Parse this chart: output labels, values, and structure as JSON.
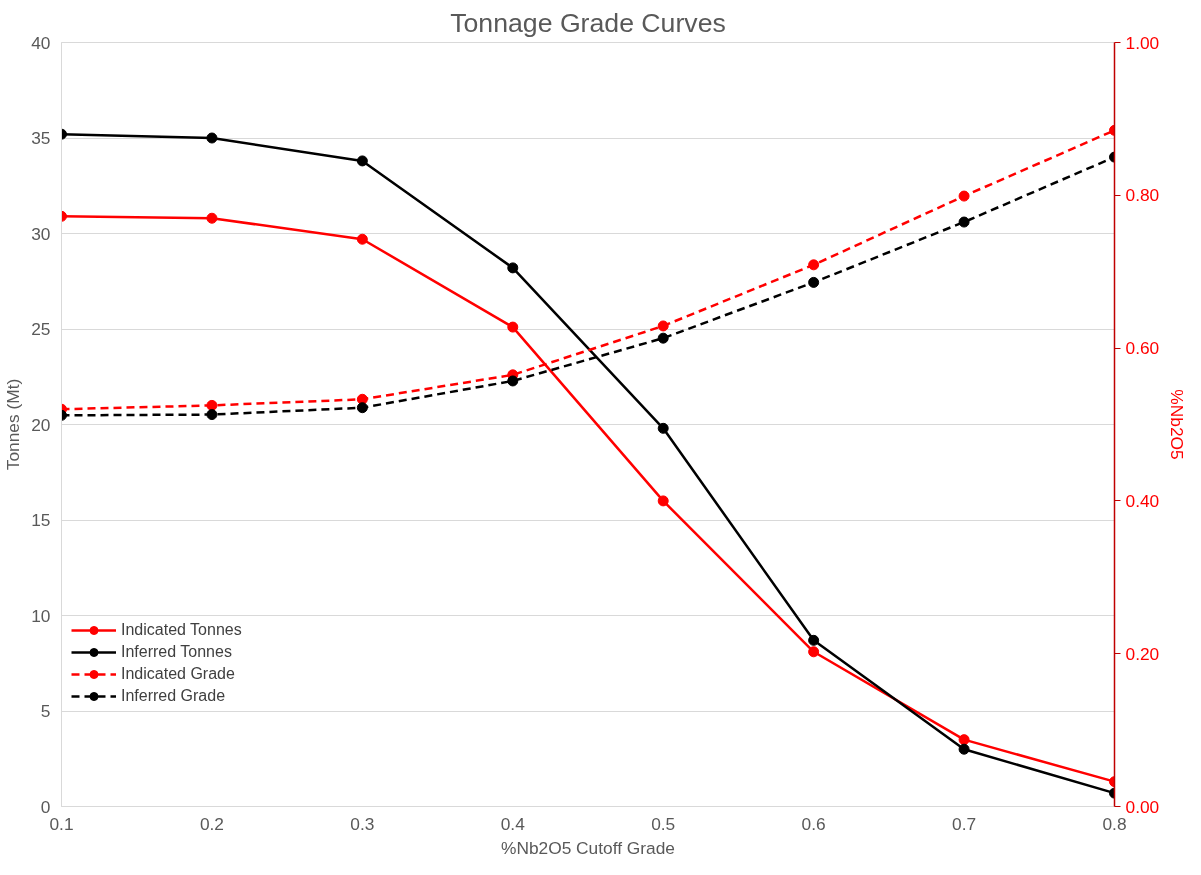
{
  "chart_data": {
    "type": "line",
    "title": "Tonnage Grade Curves",
    "xlabel": "%Nb2O5 Cutoff Grade",
    "ylabel": "Tonnes (Mt)",
    "y2label": "%Nb2O5",
    "x": [
      0.1,
      0.2,
      0.3,
      0.4,
      0.5,
      0.6,
      0.7,
      0.8
    ],
    "series": [
      {
        "name": "Indicated Tonnes",
        "color": "#ff0000",
        "line_style": "solid",
        "values": [
          30.9,
          30.8,
          29.7,
          25.1,
          16.0,
          8.1,
          3.5,
          1.3
        ]
      },
      {
        "name": "Inferred Tonnes",
        "color": "#000000",
        "line_style": "solid",
        "values": [
          35.2,
          35.0,
          33.8,
          28.2,
          19.8,
          8.7,
          3.0,
          0.7
        ]
      },
      {
        "name": "Indicated Grade",
        "color": "#ff0000",
        "line_style": "dashed",
        "axis": "y2",
        "values": [
          0.52,
          0.525,
          0.533,
          0.565,
          0.629,
          0.709,
          0.799,
          0.885
        ]
      },
      {
        "name": "Inferred Grade",
        "color": "#000000",
        "line_style": "dashed",
        "axis": "y2",
        "values": [
          0.512,
          0.513,
          0.522,
          0.557,
          0.613,
          0.686,
          0.765,
          0.85
        ]
      }
    ],
    "xlim": [
      0.1,
      0.8
    ],
    "xticks": [
      0.1,
      0.2,
      0.3,
      0.4,
      0.5,
      0.6,
      0.7,
      0.8
    ],
    "ylim": [
      0,
      40
    ],
    "yticks": [
      0,
      5,
      10,
      15,
      20,
      25,
      30,
      35,
      40
    ],
    "y2lim": [
      0,
      1
    ],
    "y2ticks": [
      {
        "value": 0,
        "label": "0.00"
      },
      {
        "value": 0.2,
        "label": "0.20"
      },
      {
        "value": 0.4,
        "label": "0.40"
      },
      {
        "value": 0.6,
        "label": "0.60"
      },
      {
        "value": 0.8,
        "label": "0.80"
      },
      {
        "value": 1,
        "label": "1.00"
      }
    ],
    "grid": "y",
    "legend": "left",
    "marker": "circle"
  }
}
